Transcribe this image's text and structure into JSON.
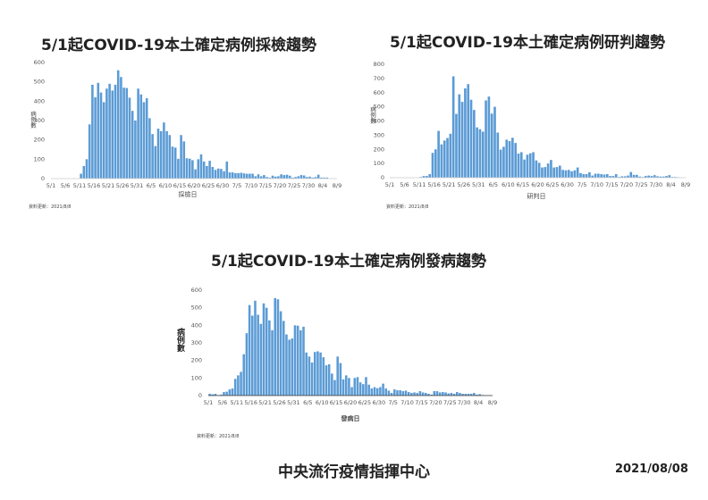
{
  "footer": {
    "org": "中央流行疫情指揮中心",
    "date": "2021/08/08"
  },
  "accent_color": "#5b9bd5",
  "chart_data": [
    {
      "type": "bar",
      "title": "5/1起COVID-19本土確定病例採檢趨勢",
      "xlabel": "採檢日",
      "ylabel": "病例數",
      "note": "資料更新：2021/8/8",
      "x_ticks": [
        "5/1",
        "5/6",
        "5/11",
        "5/16",
        "5/21",
        "5/26",
        "5/31",
        "6/5",
        "6/10",
        "6/15",
        "6/20",
        "6/25",
        "6/30",
        "7/5",
        "7/10",
        "7/15",
        "7/20",
        "7/25",
        "7/30",
        "8/4",
        "8/9"
      ],
      "y_ticks": [
        0,
        100,
        200,
        300,
        400,
        500,
        600
      ],
      "ylim": [
        0,
        600
      ],
      "values": [
        0,
        0,
        0,
        0,
        0,
        0,
        0,
        0,
        0,
        0,
        25,
        65,
        100,
        280,
        485,
        420,
        495,
        445,
        395,
        465,
        490,
        455,
        485,
        560,
        525,
        470,
        468,
        418,
        350,
        300,
        465,
        435,
        395,
        415,
        312,
        230,
        168,
        258,
        245,
        290,
        245,
        225,
        165,
        160,
        102,
        225,
        192,
        105,
        103,
        95,
        48,
        100,
        125,
        88,
        65,
        92,
        60,
        45,
        52,
        50,
        38,
        88,
        32,
        32,
        28,
        28,
        30,
        27,
        25,
        25,
        25,
        12,
        22,
        12,
        18,
        8,
        5,
        15,
        10,
        12,
        22,
        18,
        20,
        15,
        5,
        8,
        12,
        18,
        16,
        8,
        10,
        5,
        8,
        20,
        5,
        5,
        5
      ]
    },
    {
      "type": "bar",
      "title": "5/1起COVID-19本土確定病例研判趨勢",
      "xlabel": "研判日",
      "ylabel": "病例數",
      "note": "資料更新：2021/8/8",
      "x_ticks": [
        "5/1",
        "5/6",
        "5/11",
        "5/16",
        "5/21",
        "5/26",
        "5/31",
        "6/5",
        "6/10",
        "6/15",
        "6/20",
        "6/25",
        "6/30",
        "7/5",
        "7/10",
        "7/15",
        "7/20",
        "7/25",
        "7/30",
        "8/4",
        "8/9"
      ],
      "y_ticks": [
        0,
        100,
        200,
        300,
        400,
        500,
        600,
        700,
        800
      ],
      "ylim": [
        0,
        800
      ],
      "values": [
        2,
        1,
        0,
        0,
        0,
        1,
        0,
        1,
        0,
        0,
        5,
        12,
        12,
        25,
        175,
        200,
        330,
        235,
        262,
        280,
        310,
        715,
        450,
        588,
        535,
        630,
        660,
        550,
        478,
        355,
        342,
        325,
        545,
        572,
        452,
        500,
        318,
        198,
        218,
        268,
        258,
        282,
        245,
        170,
        180,
        128,
        162,
        172,
        180,
        122,
        105,
        72,
        75,
        100,
        125,
        72,
        75,
        85,
        55,
        52,
        55,
        45,
        52,
        72,
        32,
        25,
        25,
        38,
        15,
        28,
        28,
        25,
        22,
        25,
        12,
        12,
        25,
        5,
        10,
        10,
        15,
        40,
        20,
        20,
        8,
        5,
        12,
        15,
        12,
        18,
        10,
        8,
        8,
        12,
        18,
        5,
        5,
        3
      ]
    },
    {
      "type": "bar",
      "title": "5/1起COVID-19本土確定病例發病趨勢",
      "xlabel": "發病日",
      "ylabel": "病例數",
      "note": "資料更新：2021/8/8",
      "x_ticks": [
        "5/1",
        "5/6",
        "5/11",
        "5/16",
        "5/21",
        "5/26",
        "5/31",
        "6/5",
        "6/10",
        "6/15",
        "6/20",
        "6/25",
        "6/30",
        "7/5",
        "7/10",
        "7/15",
        "7/20",
        "7/25",
        "7/30",
        "8/4",
        "8/9"
      ],
      "y_ticks": [
        0,
        100,
        200,
        300,
        400,
        500,
        600
      ],
      "ylim": [
        0,
        600
      ],
      "values": [
        10,
        7,
        10,
        2,
        5,
        20,
        22,
        35,
        40,
        95,
        115,
        135,
        235,
        355,
        515,
        455,
        540,
        460,
        408,
        525,
        500,
        428,
        372,
        555,
        548,
        480,
        425,
        348,
        318,
        325,
        400,
        398,
        372,
        392,
        245,
        222,
        188,
        248,
        252,
        245,
        218,
        172,
        178,
        125,
        88,
        222,
        185,
        92,
        115,
        100,
        48,
        100,
        105,
        75,
        65,
        105,
        62,
        40,
        48,
        42,
        48,
        68,
        40,
        28,
        15,
        35,
        30,
        30,
        25,
        28,
        20,
        15,
        18,
        15,
        25,
        18,
        15,
        10,
        5,
        25,
        25,
        18,
        20,
        18,
        12,
        15,
        10,
        20,
        15,
        10,
        10,
        10,
        10,
        15,
        5,
        8,
        3
      ]
    }
  ]
}
